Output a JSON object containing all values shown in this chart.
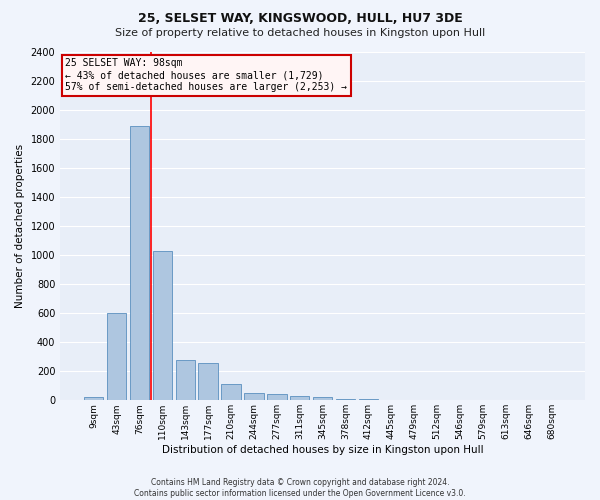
{
  "title1": "25, SELSET WAY, KINGSWOOD, HULL, HU7 3DE",
  "title2": "Size of property relative to detached houses in Kingston upon Hull",
  "xlabel": "Distribution of detached houses by size in Kingston upon Hull",
  "ylabel": "Number of detached properties",
  "footer1": "Contains HM Land Registry data © Crown copyright and database right 2024.",
  "footer2": "Contains public sector information licensed under the Open Government Licence v3.0.",
  "categories": [
    "9sqm",
    "43sqm",
    "76sqm",
    "110sqm",
    "143sqm",
    "177sqm",
    "210sqm",
    "244sqm",
    "277sqm",
    "311sqm",
    "345sqm",
    "378sqm",
    "412sqm",
    "445sqm",
    "479sqm",
    "512sqm",
    "546sqm",
    "579sqm",
    "613sqm",
    "646sqm",
    "680sqm"
  ],
  "values": [
    20,
    600,
    1890,
    1030,
    280,
    260,
    115,
    50,
    45,
    30,
    20,
    10,
    8,
    5,
    3,
    2,
    1,
    1,
    1,
    0,
    0
  ],
  "bar_color": "#aec6e0",
  "bar_edge_color": "#5a8fbf",
  "fig_bg_color": "#f0f4fc",
  "ax_bg_color": "#e8eef8",
  "grid_color": "#ffffff",
  "annotation_text_line1": "25 SELSET WAY: 98sqm",
  "annotation_text_line2": "← 43% of detached houses are smaller (1,729)",
  "annotation_text_line3": "57% of semi-detached houses are larger (2,253) →",
  "ann_box_facecolor": "#fff5f5",
  "ann_box_edgecolor": "#cc0000",
  "red_line_x": 2.5,
  "ylim": [
    0,
    2400
  ],
  "yticks": [
    0,
    200,
    400,
    600,
    800,
    1000,
    1200,
    1400,
    1600,
    1800,
    2000,
    2200,
    2400
  ],
  "title1_fontsize": 9,
  "title2_fontsize": 8,
  "ylabel_fontsize": 7.5,
  "xlabel_fontsize": 7.5,
  "ytick_fontsize": 7,
  "xtick_fontsize": 6.5,
  "ann_fontsize": 7,
  "footer_fontsize": 5.5
}
